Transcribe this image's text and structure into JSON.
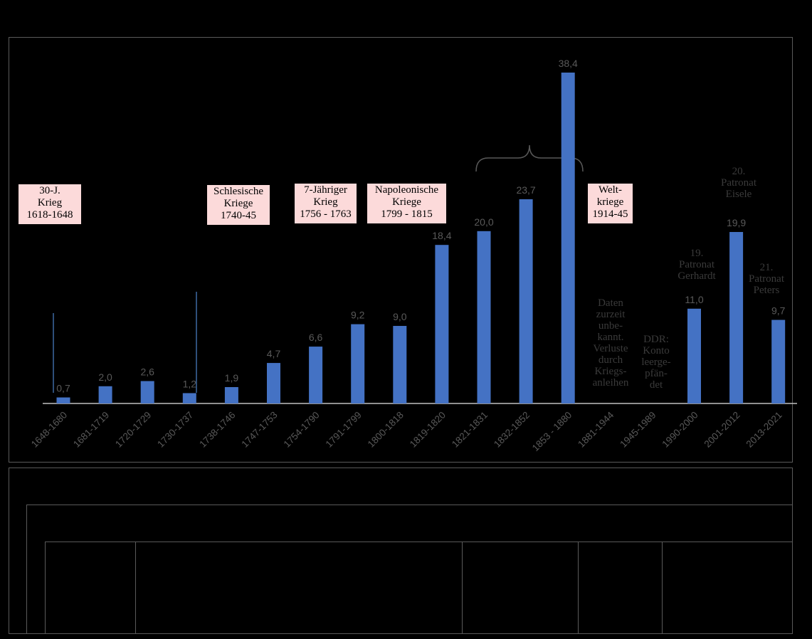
{
  "chart_data": {
    "type": "bar",
    "categories": [
      "1648-1680",
      "1681-1719",
      "1720-1729",
      "1730-1737",
      "1738-1746",
      "1747-1753",
      "1754-1790",
      "1791-1799",
      "1800-1818",
      "1819-1820",
      "1821-1831",
      "1832-1852",
      "1853 - 1880",
      "1881-1944",
      "1945-1989",
      "1990-2000",
      "2001-2012",
      "2013-2021"
    ],
    "values": [
      0.7,
      2.0,
      2.6,
      1.2,
      1.9,
      4.7,
      6.6,
      9.2,
      9.0,
      18.4,
      20.0,
      23.7,
      38.4,
      null,
      null,
      11.0,
      19.9,
      9.7
    ],
    "value_labels": [
      "0,7",
      "2,0",
      "2,6",
      "1,2",
      "1,9",
      "4,7",
      "6,6",
      "9,2",
      "9,0",
      "18,4",
      "20,0",
      "23,7",
      "38,4",
      "",
      "",
      "11,0",
      "19,9",
      "9,7"
    ],
    "ylim": [
      0,
      40
    ],
    "bar_color": "#4472c4",
    "grid": false,
    "legend": "none",
    "annotations": {
      "war_labels": [
        {
          "id": "thirty-years-war",
          "text": "30-J.\nKrieg\n1618-1648"
        },
        {
          "id": "silesian-wars",
          "text": "Schlesische\nKriege\n1740-45"
        },
        {
          "id": "seven-years-war",
          "text": "7-Jähriger\nKrieg\n1756 - 1763"
        },
        {
          "id": "napoleonic-wars",
          "text": "Napoleonische\nKriege\n1799 - 1815"
        },
        {
          "id": "world-wars",
          "text": "Welt-\nkriege\n1914-45"
        }
      ],
      "gap_notes": [
        {
          "id": "data-unknown",
          "text": "Daten\nzurzeit\nunbe-\nkannt.\nVerluste\ndurch\nKriegs-\nanleihen"
        },
        {
          "id": "gdr-account",
          "text": "DDR:\nKonto\nleerge-\npfän-\ndet"
        }
      ],
      "patronat_labels": [
        {
          "id": "patronat-19",
          "text": "19.\nPatronat\nGerhardt"
        },
        {
          "id": "patronat-20",
          "text": "20.\nPatronat\nEisele"
        },
        {
          "id": "patronat-21",
          "text": "21.\nPatronat\nPeters"
        }
      ]
    }
  }
}
